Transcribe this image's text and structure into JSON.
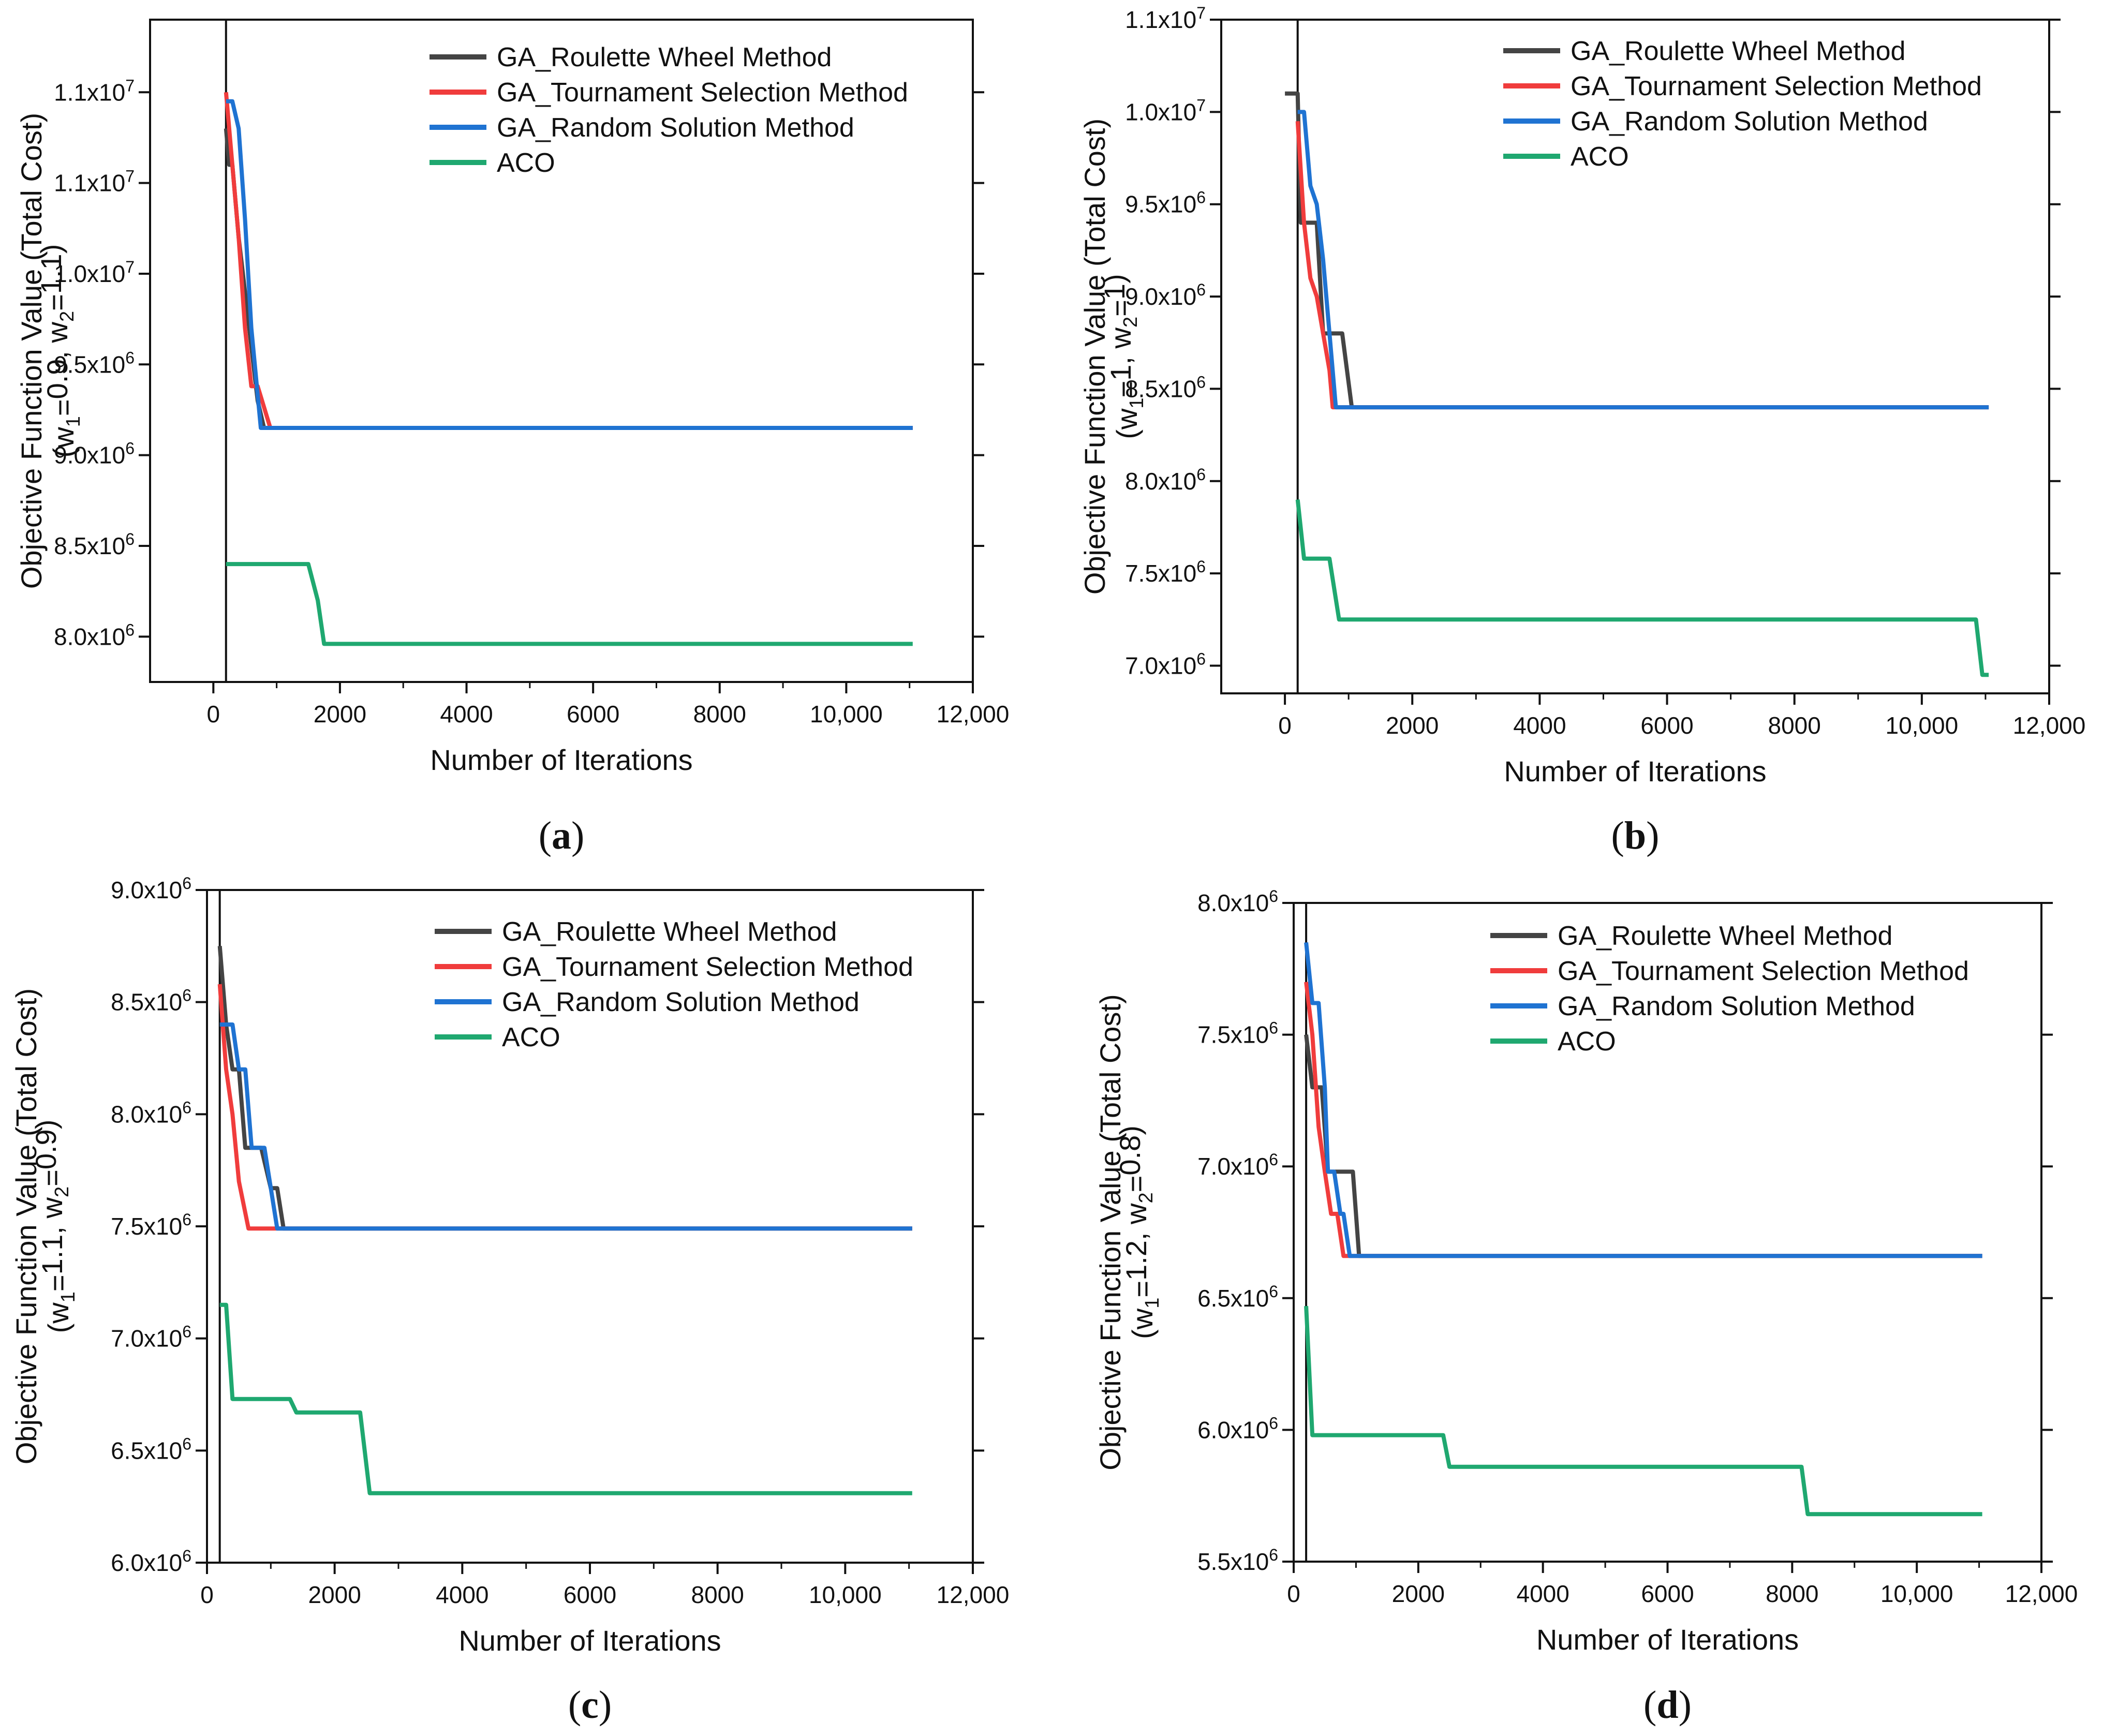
{
  "legend_entries": [
    "GA_Roulette Wheel Method",
    "GA_Tournament Selection Method",
    "GA_Random Solution Method",
    "ACO"
  ],
  "series_colors": {
    "GA_Roulette Wheel Method": "#444444",
    "GA_Tournament Selection Method": "#f03c3c",
    "GA_Random Solution Method": "#1f73d2",
    "ACO": "#1fa870"
  },
  "chart_data": [
    {
      "type": "line",
      "caption_letter": "a",
      "xlabel": "Number of Iterations",
      "ylabel": "Objective Function Value (Total Cost)",
      "ylabel_weights": {
        "w1": "0.9",
        "w2": "1.1"
      },
      "xlim": [
        -1000,
        12000
      ],
      "ylim": [
        7750000,
        11400000
      ],
      "xticks": [
        0,
        2000,
        4000,
        6000,
        8000,
        10000,
        12000
      ],
      "xtick_labels": [
        "0",
        "2000",
        "4000",
        "6000",
        "8000",
        "10,000",
        "12,000"
      ],
      "yticks": [
        8000000,
        8500000,
        9000000,
        9500000,
        10000000,
        10500000,
        11000000
      ],
      "ytick_mantissa": [
        "8.0x10",
        "8.5x10",
        "9.0x10",
        "9.5x10",
        "1.0x10",
        "1.1x10",
        "1.1x10"
      ],
      "ytick_exponent": [
        "6",
        "6",
        "6",
        "6",
        "7",
        "7",
        "7"
      ],
      "vline_x": 200,
      "series": [
        {
          "name": "GA_Roulette Wheel Method",
          "x": [
            200,
            250,
            300,
            350,
            400,
            500,
            600,
            700,
            800,
            11050
          ],
          "y": [
            10800000,
            10600000,
            10600000,
            10400000,
            10200000,
            9900000,
            9600000,
            9300000,
            9150000,
            9150000
          ]
        },
        {
          "name": "GA_Tournament Selection Method",
          "x": [
            200,
            250,
            300,
            400,
            500,
            600,
            700,
            900,
            11050
          ],
          "y": [
            11000000,
            10800000,
            10600000,
            10200000,
            9700000,
            9380000,
            9380000,
            9150000,
            9150000
          ]
        },
        {
          "name": "GA_Random Solution Method",
          "x": [
            200,
            300,
            400,
            500,
            600,
            750,
            11050
          ],
          "y": [
            10950000,
            10950000,
            10800000,
            10300000,
            9700000,
            9150000,
            9150000
          ]
        },
        {
          "name": "ACO",
          "x": [
            200,
            1500,
            1650,
            1750,
            11050
          ],
          "y": [
            8400000,
            8400000,
            8200000,
            7960000,
            7960000
          ]
        }
      ]
    },
    {
      "type": "line",
      "caption_letter": "b",
      "xlabel": "Number of Iterations",
      "ylabel": "Objective Function Value (Total Cost)",
      "ylabel_weights": {
        "w1": "1",
        "w2": "1"
      },
      "xlim": [
        -1000,
        12000
      ],
      "ylim": [
        6850000,
        10500000
      ],
      "xticks": [
        0,
        2000,
        4000,
        6000,
        8000,
        10000,
        12000
      ],
      "xtick_labels": [
        "0",
        "2000",
        "4000",
        "6000",
        "8000",
        "10,000",
        "12,000"
      ],
      "yticks": [
        7000000,
        7500000,
        8000000,
        8500000,
        9000000,
        9500000,
        10000000,
        10500000
      ],
      "ytick_mantissa": [
        "7.0x10",
        "7.5x10",
        "8.0x10",
        "8.5x10",
        "9.0x10",
        "9.5x10",
        "1.0x10",
        "1.1x10"
      ],
      "ytick_exponent": [
        "6",
        "6",
        "6",
        "6",
        "6",
        "6",
        "7",
        "7"
      ],
      "vline_x": 200,
      "series": [
        {
          "name": "GA_Roulette Wheel Method",
          "x": [
            0,
            200,
            250,
            350,
            500,
            550,
            600,
            800,
            900,
            1050,
            11050
          ],
          "y": [
            10100000,
            10100000,
            9400000,
            9400000,
            9400000,
            9100000,
            8800000,
            8800000,
            8800000,
            8400000,
            8400000
          ]
        },
        {
          "name": "GA_Tournament Selection Method",
          "x": [
            200,
            300,
            400,
            500,
            600,
            700,
            750,
            11050
          ],
          "y": [
            9950000,
            9400000,
            9100000,
            9000000,
            8800000,
            8600000,
            8400000,
            8400000
          ]
        },
        {
          "name": "GA_Random Solution Method",
          "x": [
            200,
            300,
            400,
            500,
            600,
            700,
            800,
            11050
          ],
          "y": [
            10000000,
            10000000,
            9600000,
            9500000,
            9200000,
            8800000,
            8400000,
            8400000
          ]
        },
        {
          "name": "ACO",
          "x": [
            200,
            300,
            700,
            850,
            10850,
            10950,
            11050
          ],
          "y": [
            7900000,
            7580000,
            7580000,
            7250000,
            7250000,
            6950000,
            6950000
          ]
        }
      ]
    },
    {
      "type": "line",
      "caption_letter": "c",
      "xlabel": "Number of Iterations",
      "ylabel": "Objective Function Value (Total Cost)",
      "ylabel_weights": {
        "w1": "1.1",
        "w2": "0.9"
      },
      "xlim": [
        0,
        12000
      ],
      "ylim": [
        6000000,
        9000000
      ],
      "xticks": [
        0,
        2000,
        4000,
        6000,
        8000,
        10000,
        12000
      ],
      "xtick_labels": [
        "0",
        "2000",
        "4000",
        "6000",
        "8000",
        "10,000",
        "12,000"
      ],
      "yticks": [
        6000000,
        6500000,
        7000000,
        7500000,
        8000000,
        8500000,
        9000000
      ],
      "ytick_mantissa": [
        "6.0x10",
        "6.5x10",
        "7.0x10",
        "7.5x10",
        "8.0x10",
        "8.5x10",
        "9.0x10"
      ],
      "ytick_exponent": [
        "6",
        "6",
        "6",
        "6",
        "6",
        "6",
        "6"
      ],
      "vline_x": 200,
      "series": [
        {
          "name": "GA_Roulette Wheel Method",
          "x": [
            200,
            300,
            400,
            500,
            600,
            700,
            850,
            1000,
            1100,
            1200,
            11050
          ],
          "y": [
            8750000,
            8400000,
            8200000,
            8200000,
            7850000,
            7850000,
            7850000,
            7670000,
            7670000,
            7490000,
            7490000
          ]
        },
        {
          "name": "GA_Tournament Selection Method",
          "x": [
            200,
            300,
            400,
            500,
            650,
            1100,
            11050
          ],
          "y": [
            8580000,
            8200000,
            8000000,
            7700000,
            7490000,
            7490000,
            7490000
          ]
        },
        {
          "name": "GA_Random Solution Method",
          "x": [
            200,
            400,
            500,
            600,
            700,
            800,
            900,
            1100,
            11050
          ],
          "y": [
            8400000,
            8400000,
            8200000,
            8200000,
            7850000,
            7850000,
            7850000,
            7490000,
            7490000
          ]
        },
        {
          "name": "ACO",
          "x": [
            200,
            300,
            400,
            1300,
            1400,
            2400,
            2550,
            11050
          ],
          "y": [
            7150000,
            7150000,
            6730000,
            6730000,
            6670000,
            6670000,
            6310000,
            6310000
          ]
        }
      ]
    },
    {
      "type": "line",
      "caption_letter": "d",
      "xlabel": "Number of Iterations",
      "ylabel": "Objective Function Value (Total Cost)",
      "ylabel_weights": {
        "w1": "1.2",
        "w2": "0.8"
      },
      "xlim": [
        0,
        12000
      ],
      "ylim": [
        5500000,
        8000000
      ],
      "xticks": [
        0,
        2000,
        4000,
        6000,
        8000,
        10000,
        12000
      ],
      "xtick_labels": [
        "0",
        "2000",
        "4000",
        "6000",
        "8000",
        "10,000",
        "12,000"
      ],
      "yticks": [
        5500000,
        6000000,
        6500000,
        7000000,
        7500000,
        8000000
      ],
      "ytick_mantissa": [
        "5.5x10",
        "6.0x10",
        "6.5x10",
        "7.0x10",
        "7.5x10",
        "8.0x10"
      ],
      "ytick_exponent": [
        "6",
        "6",
        "6",
        "6",
        "6",
        "6"
      ],
      "vline_x": 200,
      "series": [
        {
          "name": "GA_Roulette Wheel Method",
          "x": [
            200,
            300,
            400,
            450,
            550,
            650,
            800,
            950,
            1050,
            11050
          ],
          "y": [
            7500000,
            7300000,
            7300000,
            7300000,
            6980000,
            6980000,
            6980000,
            6980000,
            6660000,
            6660000
          ]
        },
        {
          "name": "GA_Tournament Selection Method",
          "x": [
            200,
            300,
            400,
            500,
            600,
            700,
            800,
            850,
            11050
          ],
          "y": [
            7700000,
            7500000,
            7150000,
            6980000,
            6820000,
            6820000,
            6660000,
            6660000,
            6660000
          ]
        },
        {
          "name": "GA_Random Solution Method",
          "x": [
            200,
            300,
            400,
            500,
            550,
            650,
            750,
            800,
            900,
            11050
          ],
          "y": [
            7850000,
            7620000,
            7620000,
            7300000,
            6980000,
            6980000,
            6820000,
            6820000,
            6660000,
            6660000
          ]
        },
        {
          "name": "ACO",
          "x": [
            200,
            300,
            2400,
            2500,
            8150,
            8250,
            11050
          ],
          "y": [
            6470000,
            5980000,
            5980000,
            5860000,
            5860000,
            5680000,
            5680000
          ]
        }
      ]
    }
  ]
}
